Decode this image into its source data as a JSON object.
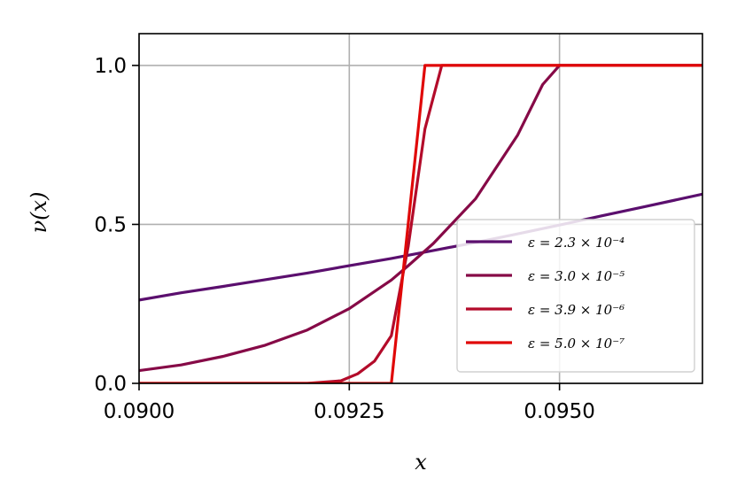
{
  "chart_data": {
    "type": "line",
    "xlabel": "x",
    "ylabel": "ν(x)",
    "xlim": [
      0.09,
      0.0967
    ],
    "ylim": [
      0,
      1.1
    ],
    "xticks": [
      "0.0900",
      "0.0925",
      "0.0950"
    ],
    "xtick_values": [
      0.09,
      0.0925,
      0.095
    ],
    "yticks": [
      "0.0",
      "0.5",
      "1.0"
    ],
    "ytick_values": [
      0.0,
      0.5,
      1.0
    ],
    "grid": true,
    "legend_position": "lower-right",
    "series": [
      {
        "name": "ε = 2.3 × 10⁻⁴",
        "color": "#5b0f6e",
        "x": [
          0.09,
          0.0905,
          0.091,
          0.0915,
          0.092,
          0.0925,
          0.093,
          0.0935,
          0.094,
          0.0945,
          0.095,
          0.0955,
          0.096,
          0.0967
        ],
        "y": [
          0.262,
          0.285,
          0.305,
          0.326,
          0.347,
          0.37,
          0.393,
          0.418,
          0.443,
          0.47,
          0.498,
          0.527,
          0.555,
          0.595
        ]
      },
      {
        "name": "ε = 3.0 × 10⁻⁵",
        "color": "#860a47",
        "x": [
          0.09,
          0.0905,
          0.091,
          0.0915,
          0.092,
          0.0925,
          0.093,
          0.0932,
          0.0935,
          0.094,
          0.0945,
          0.0948,
          0.095,
          0.0967
        ],
        "y": [
          0.04,
          0.058,
          0.085,
          0.12,
          0.168,
          0.235,
          0.325,
          0.37,
          0.44,
          0.58,
          0.78,
          0.94,
          1.0,
          1.0
        ]
      },
      {
        "name": "ε = 3.9 × 10⁻⁶",
        "color": "#b30b2a",
        "x": [
          0.09,
          0.092,
          0.0924,
          0.0926,
          0.0928,
          0.093,
          0.0932,
          0.0934,
          0.0936,
          0.0967
        ],
        "y": [
          0.0,
          0.0,
          0.008,
          0.03,
          0.07,
          0.15,
          0.43,
          0.8,
          1.0,
          1.0
        ]
      },
      {
        "name": "ε = 5.0 × 10⁻⁷",
        "color": "#e00808",
        "x": [
          0.09,
          0.093,
          0.0934,
          0.0967
        ],
        "y": [
          0.0,
          0.0,
          1.0,
          1.0
        ]
      }
    ]
  }
}
